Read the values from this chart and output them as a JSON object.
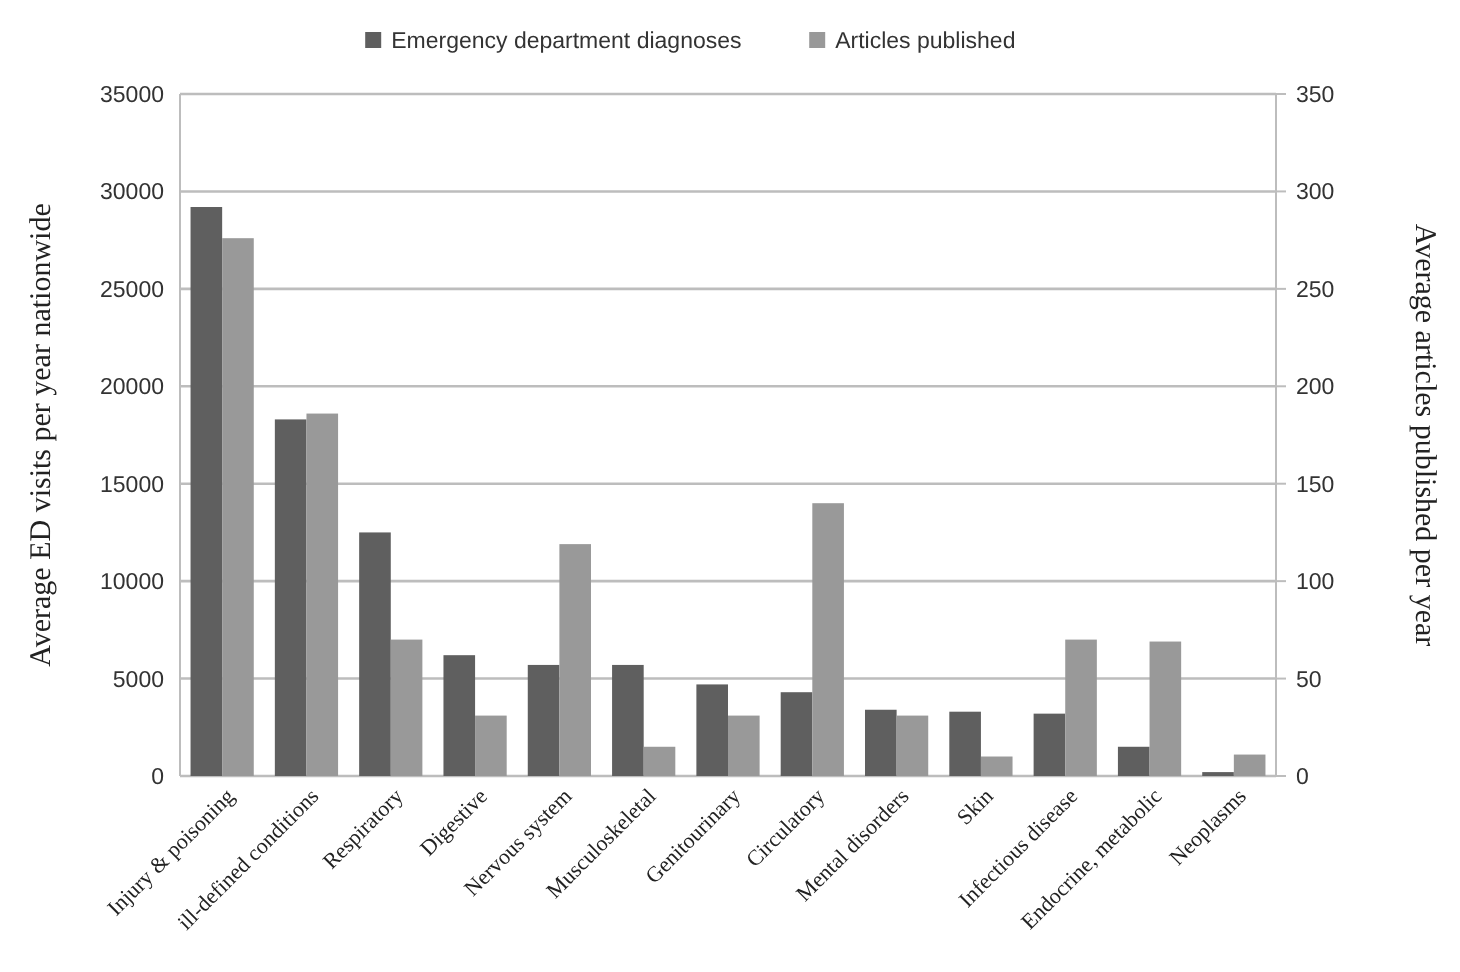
{
  "chart_data": {
    "type": "bar",
    "ylabel": "Average ED visits per year nationwide",
    "y2label": "Average articles published per year",
    "categories": [
      "Injury & poisoning",
      "ill-defined conditions",
      "Respiratory",
      "Digestive",
      "Nervous system",
      "Musculoskeletal",
      "Genitourinary",
      "Circulatory",
      "Mental disorders",
      "Skin",
      "Infectious disease",
      "Endocrine,  metabolic",
      "Neoplasms"
    ],
    "series": [
      {
        "name": "Emergency department diagnoses",
        "color": "#5f5f5f",
        "values": [
          29200,
          18300,
          12500,
          6200,
          5700,
          5700,
          4700,
          4300,
          3400,
          3300,
          3200,
          1500,
          200
        ]
      },
      {
        "name": "Articles published",
        "color": "#999999",
        "axis": "y2",
        "values": [
          276,
          186,
          70,
          31,
          119,
          15,
          31,
          140,
          31,
          10,
          70,
          69,
          11
        ]
      }
    ],
    "ylim": [
      0,
      35000
    ],
    "yticks": [
      0,
      5000,
      10000,
      15000,
      20000,
      25000,
      30000,
      35000
    ],
    "y2lim": [
      0,
      350
    ],
    "y2ticks": [
      0,
      50,
      100,
      150,
      200,
      250,
      300,
      350
    ],
    "grid": "y",
    "legend": "top"
  }
}
